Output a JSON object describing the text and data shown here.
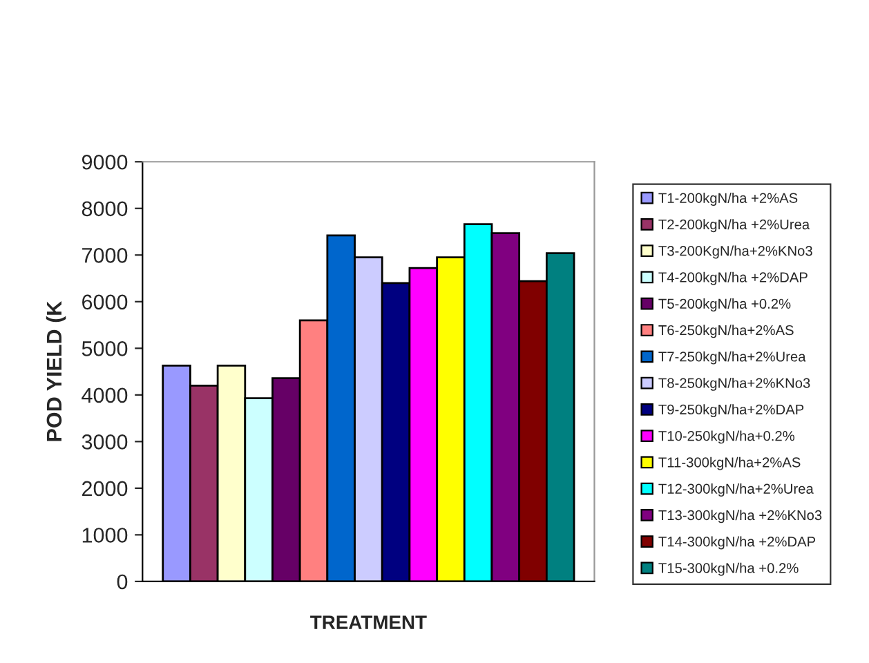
{
  "chart_data": {
    "type": "bar",
    "xlabel": "TREATMENT",
    "ylabel": "POD YIELD (K",
    "categories": [
      null
    ],
    "series": [
      {
        "name": "T1-200kgN/ha +2%AS",
        "color": "#9999ff",
        "values": [
          4630
        ]
      },
      {
        "name": "T2-200kgN/ha +2%Urea",
        "color": "#993366",
        "values": [
          4200
        ]
      },
      {
        "name": "T3-200KgN/ha+2%KNo3",
        "color": "#ffffcc",
        "values": [
          4630
        ]
      },
      {
        "name": "T4-200kgN/ha +2%DAP",
        "color": "#ccffff",
        "values": [
          3930
        ]
      },
      {
        "name": "T5-200kgN/ha +0.2%",
        "color": "#660066",
        "values": [
          4360
        ]
      },
      {
        "name": "T6-250kgN/ha+2%AS",
        "color": "#ff8080",
        "values": [
          5600
        ]
      },
      {
        "name": "T7-250kgN/ha+2%Urea",
        "color": "#0066cc",
        "values": [
          7420
        ]
      },
      {
        "name": "T8-250kgN/ha+2%KNo3",
        "color": "#ccccff",
        "values": [
          6950
        ]
      },
      {
        "name": "T9-250kgN/ha+2%DAP",
        "color": "#000080",
        "values": [
          6400
        ]
      },
      {
        "name": "T10-250kgN/ha+0.2%",
        "color": "#ff00ff",
        "values": [
          6720
        ]
      },
      {
        "name": "T11-300kgN/ha+2%AS",
        "color": "#ffff00",
        "values": [
          6950
        ]
      },
      {
        "name": "T12-300kgN/ha+2%Urea",
        "color": "#00ffff",
        "values": [
          7660
        ]
      },
      {
        "name": "T13-300kgN/ha +2%KNo3",
        "color": "#800080",
        "values": [
          7470
        ]
      },
      {
        "name": "T14-300kgN/ha +2%DAP",
        "color": "#800000",
        "values": [
          6440
        ]
      },
      {
        "name": "T15-300kgN/ha +0.2%",
        "color": "#008080",
        "values": [
          7040
        ]
      }
    ],
    "ylim": [
      0,
      9000
    ],
    "yticks": [
      0,
      1000,
      2000,
      3000,
      4000,
      5000,
      6000,
      7000,
      8000,
      9000
    ],
    "grid": false,
    "legend": "right",
    "tick_labels": "y"
  }
}
